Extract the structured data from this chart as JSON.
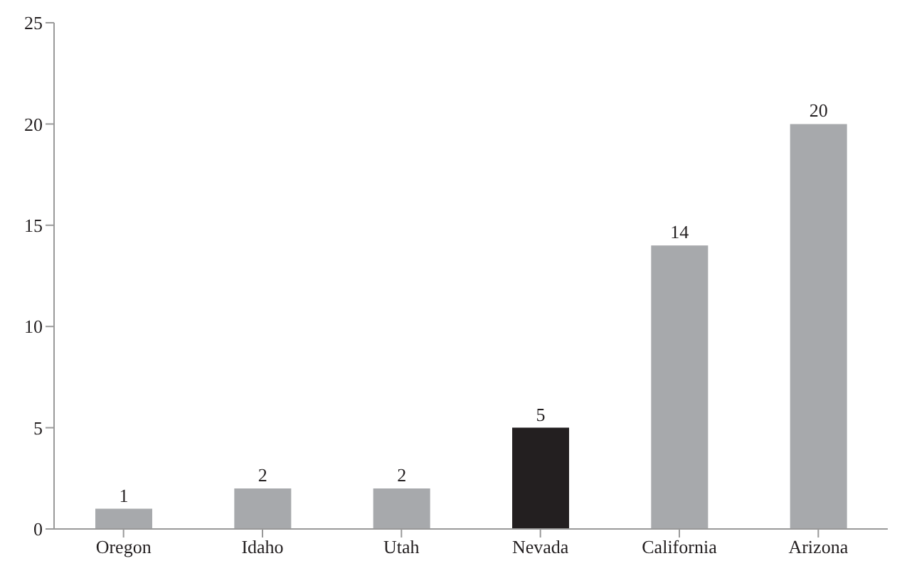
{
  "chart_data": {
    "type": "bar",
    "categories": [
      "Oregon",
      "Idaho",
      "Utah",
      "Nevada",
      "California",
      "Arizona"
    ],
    "values": [
      1,
      2,
      2,
      5,
      14,
      20
    ],
    "colors": [
      "#a7a9ac",
      "#a7a9ac",
      "#a7a9ac",
      "#231f20",
      "#a7a9ac",
      "#a7a9ac"
    ],
    "ylim": [
      0,
      25
    ],
    "yticks": [
      0,
      5,
      10,
      15,
      20,
      25
    ],
    "grid": false,
    "data_labels": true
  }
}
